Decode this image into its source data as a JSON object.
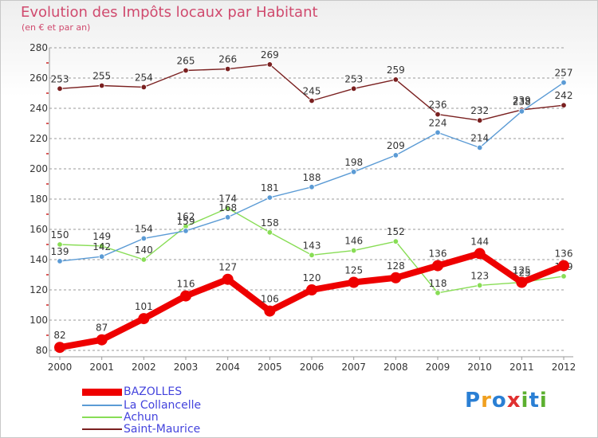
{
  "title": "Evolution des Impôts locaux par Habitant",
  "subtitle": "(en € et par an)",
  "logo": {
    "text": "Proxiti",
    "letters": [
      "P",
      "r",
      "o",
      "x",
      "i",
      "t",
      "i"
    ],
    "colors": [
      "#2a7fd4",
      "#f0a020",
      "#2a7fd4",
      "#e03030",
      "#5cb030",
      "#2a7fd4",
      "#5cb030"
    ]
  },
  "chart_data": {
    "type": "line",
    "x": [
      "2000",
      "2001",
      "2002",
      "2003",
      "2004",
      "2005",
      "2006",
      "2007",
      "2008",
      "2009",
      "2010",
      "2011",
      "2012"
    ],
    "ylim": [
      80,
      280
    ],
    "yticks": [
      80,
      100,
      120,
      140,
      160,
      180,
      200,
      220,
      240,
      260,
      280
    ],
    "grid": "horizontal dashed",
    "legend_position": "bottom-left",
    "series": [
      {
        "name": "BAZOLLES",
        "color": "#ee0000",
        "values": [
          82,
          87,
          101,
          116,
          127,
          106,
          120,
          125,
          128,
          136,
          144,
          125,
          136
        ]
      },
      {
        "name": "La Collancelle",
        "color": "#5b9bd5",
        "values": [
          139,
          142,
          154,
          159,
          168,
          181,
          188,
          198,
          209,
          224,
          214,
          238,
          257
        ]
      },
      {
        "name": "Achun",
        "color": "#88dd55",
        "values": [
          150,
          149,
          140,
          162,
          174,
          158,
          143,
          146,
          152,
          118,
          123,
          125,
          129
        ]
      },
      {
        "name": "Saint-Maurice",
        "color": "#7a2020",
        "values": [
          253,
          255,
          254,
          265,
          266,
          269,
          245,
          253,
          259,
          236,
          232,
          239,
          242
        ]
      }
    ]
  }
}
